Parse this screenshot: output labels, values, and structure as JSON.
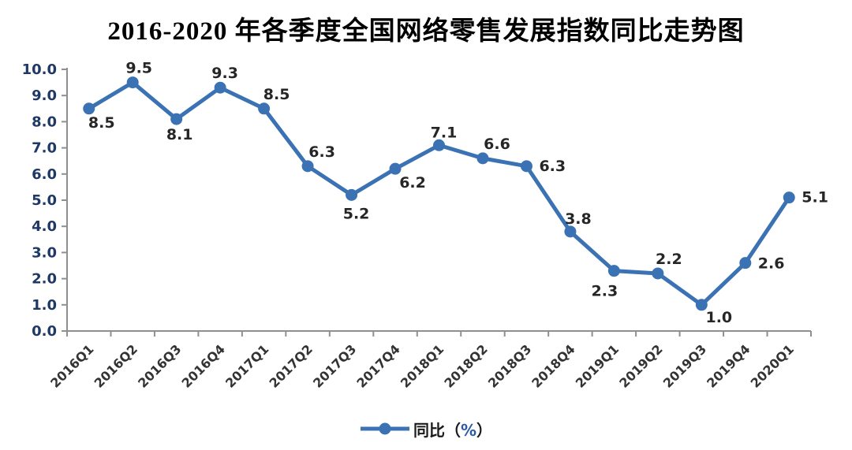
{
  "title": "2016-2020 年各季度全国网络零售发展指数同比走势图",
  "legend": {
    "prefix": "同比（",
    "percent": "%",
    "suffix": "）",
    "full_label": "同比（%）"
  },
  "colors": {
    "line": "#3a72b4",
    "marker": "#3a72b4",
    "axis": "#8f8f8f",
    "y_tick_label": "#1f3864",
    "x_tick_label": "#333333",
    "data_label": "#262626",
    "legend_text": "#1a1a1a",
    "legend_percent": "#2b5aa6"
  },
  "chart_data": {
    "type": "line",
    "title": "2016-2020 年各季度全国网络零售发展指数同比走势图",
    "categories": [
      "2016Q1",
      "2016Q2",
      "2016Q3",
      "2016Q4",
      "2017Q1",
      "2017Q2",
      "2017Q3",
      "2017Q4",
      "2018Q1",
      "2018Q2",
      "2018Q3",
      "2018Q4",
      "2019Q1",
      "2019Q2",
      "2019Q3",
      "2019Q4",
      "2020Q1"
    ],
    "series": [
      {
        "name": "同比（%）",
        "values": [
          8.5,
          9.5,
          8.1,
          9.3,
          8.5,
          6.3,
          5.2,
          6.2,
          7.1,
          6.6,
          6.3,
          3.8,
          2.3,
          2.2,
          1.0,
          2.6,
          5.1
        ]
      }
    ],
    "point_labels": [
      "8.5",
      "9.5",
      "8.1",
      "9.3",
      "8.5",
      "6.3",
      "5.2",
      "6.2",
      "7.1",
      "6.6",
      "6.3",
      "3.8",
      "2.3",
      "2.2",
      "1.0",
      "2.6",
      "5.1"
    ],
    "xlabel": "",
    "ylabel": "",
    "ylim": [
      0,
      10
    ],
    "ytick_step": 1.0,
    "ytick_labels": [
      "0.0",
      "1.0",
      "2.0",
      "3.0",
      "4.0",
      "5.0",
      "6.0",
      "7.0",
      "8.0",
      "9.0",
      "10.0"
    ],
    "grid": false,
    "legend_position": "bottom",
    "x_label_rotation_deg": -45,
    "label_offsets": [
      [
        16,
        24,
        "middle"
      ],
      [
        8,
        -12,
        "middle"
      ],
      [
        4,
        26,
        "middle"
      ],
      [
        6,
        -12,
        "middle"
      ],
      [
        16,
        -12,
        "middle"
      ],
      [
        18,
        -12,
        "middle"
      ],
      [
        6,
        30,
        "middle"
      ],
      [
        22,
        24,
        "middle"
      ],
      [
        6,
        -10,
        "middle"
      ],
      [
        18,
        -12,
        "middle"
      ],
      [
        16,
        6,
        "start"
      ],
      [
        10,
        -10,
        "middle"
      ],
      [
        -12,
        32,
        "middle"
      ],
      [
        14,
        -12,
        "middle"
      ],
      [
        22,
        22,
        "middle"
      ],
      [
        16,
        7,
        "start"
      ],
      [
        16,
        6,
        "start"
      ]
    ]
  }
}
